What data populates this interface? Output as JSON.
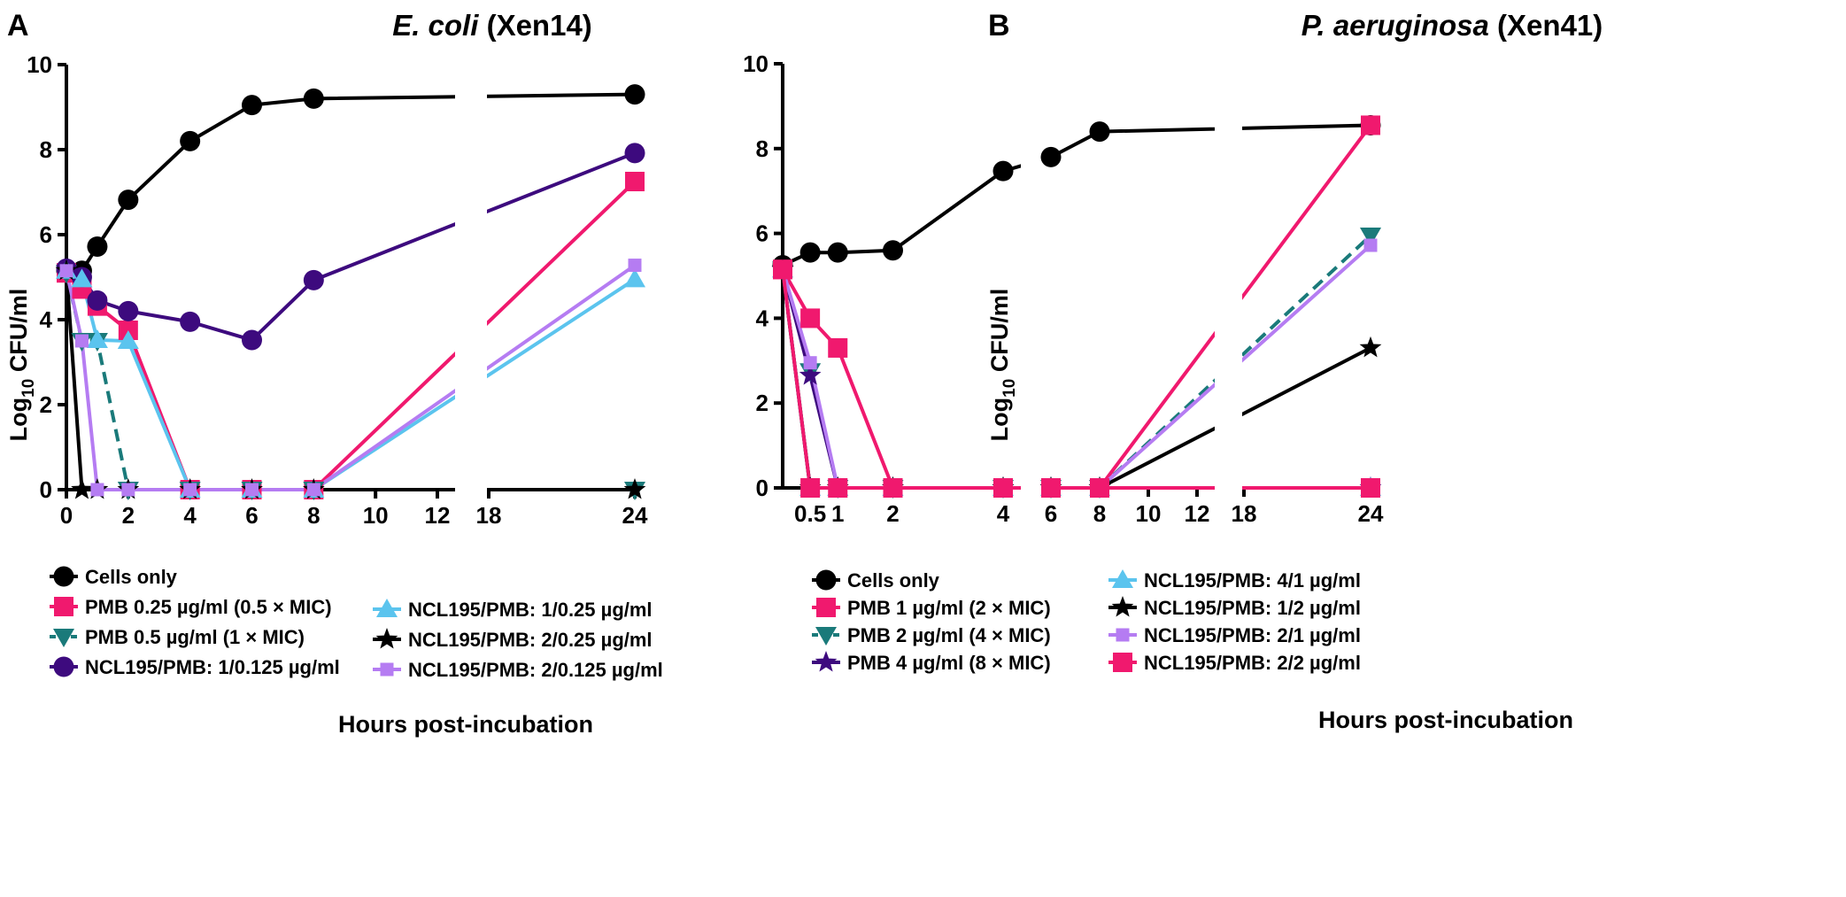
{
  "chart_data": [
    {
      "type": "line",
      "panel_label": "A",
      "title_italic": "E. coli",
      "title_rest": " (Xen14)",
      "xlabel": "Hours post-incubation",
      "ylabel_main": "Log",
      "ylabel_sub": "10",
      "ylabel_rest": " CFU/ml",
      "ylim": [
        0,
        10
      ],
      "yticks": [
        0,
        2,
        4,
        6,
        8,
        10
      ],
      "xticks": [
        0,
        2,
        4,
        6,
        8,
        10,
        12,
        18,
        24
      ],
      "xtick_labels": [
        "0",
        "2",
        "4",
        "6",
        "8",
        "10",
        "12",
        "18",
        "24"
      ],
      "axis_break": [
        12,
        18
      ],
      "series": [
        {
          "name": "Cells only",
          "color": "#000000",
          "marker": "circle",
          "dash": false,
          "x": [
            0,
            0.5,
            1,
            2,
            4,
            6,
            8,
            24
          ],
          "y": [
            5.15,
            5.15,
            5.72,
            6.82,
            8.2,
            9.05,
            9.2,
            9.3
          ]
        },
        {
          "name": "PMB 0.25 µg/ml (0.5 × MIC)",
          "color": "#f0196e",
          "marker": "square",
          "dash": false,
          "x": [
            0,
            0.5,
            1,
            2,
            4,
            6,
            8,
            24
          ],
          "y": [
            5.1,
            4.72,
            4.32,
            3.75,
            0,
            0,
            0,
            7.25
          ]
        },
        {
          "name": "PMB 0.5 µg/ml (1 × MIC)",
          "color": "#1a7a7a",
          "marker": "triangle-down",
          "dash": true,
          "x": [
            0,
            0.5,
            1,
            2,
            4,
            6,
            8,
            24
          ],
          "y": [
            5.1,
            3.5,
            3.5,
            0,
            0,
            0,
            0,
            0
          ]
        },
        {
          "name": "NCL195/PMB: 1/0.125 µg/ml",
          "color": "#3d0a7e",
          "marker": "circle",
          "dash": false,
          "x": [
            0,
            0.5,
            1,
            2,
            4,
            6,
            8,
            24
          ],
          "y": [
            5.2,
            5.0,
            4.45,
            4.2,
            3.95,
            3.52,
            4.93,
            7.92
          ]
        },
        {
          "name": "NCL195/PMB: 1/0.25 µg/ml",
          "color": "#5bc4ee",
          "marker": "triangle-up",
          "dash": false,
          "x": [
            0,
            0.5,
            1,
            2,
            4,
            6,
            8,
            24
          ],
          "y": [
            5.15,
            4.95,
            3.52,
            3.5,
            0,
            0,
            0,
            4.95
          ]
        },
        {
          "name": "NCL195/PMB: 2/0.25 µg/ml",
          "color": "#000000",
          "marker": "star",
          "dash": false,
          "x": [
            0,
            0.5,
            1,
            2,
            4,
            6,
            8,
            24
          ],
          "y": [
            5.15,
            0,
            0,
            0,
            0,
            0,
            0,
            0
          ]
        },
        {
          "name": "NCL195/PMB: 2/0.125 µg/ml",
          "color": "#b57cf2",
          "marker": "square-small",
          "dash": false,
          "x": [
            0,
            0.5,
            1,
            2,
            4,
            6,
            8,
            24
          ],
          "y": [
            5.15,
            3.5,
            0,
            0,
            0,
            0,
            0,
            5.28
          ]
        }
      ],
      "legend_col1": [
        "Cells only",
        "PMB 0.25 µg/ml (0.5 × MIC)",
        "PMB 0.5 µg/ml (1 × MIC)",
        "NCL195/PMB: 1/0.125 µg/ml"
      ],
      "legend_col2": [
        "NCL195/PMB: 1/0.25 µg/ml",
        "NCL195/PMB: 2/0.25 µg/ml",
        "NCL195/PMB: 2/0.125 µg/ml"
      ]
    },
    {
      "type": "line",
      "panel_label": "B",
      "title_italic": "P. aeruginosa",
      "title_rest": " (Xen41)",
      "xlabel": "Hours post-incubation",
      "ylabel_main": "Log",
      "ylabel_sub": "10",
      "ylabel_rest": " CFU/ml",
      "ylim": [
        0,
        10
      ],
      "yticks": [
        0,
        2,
        4,
        6,
        8,
        10
      ],
      "xticks": [
        0.5,
        1,
        2,
        4,
        6,
        8,
        10,
        12,
        18,
        24
      ],
      "xtick_labels": [
        "0.5",
        "1",
        "2",
        "4",
        "6",
        "8",
        "10",
        "12",
        "18",
        "24"
      ],
      "axis_breaks": [
        [
          4,
          6
        ],
        [
          12,
          18
        ]
      ],
      "series": [
        {
          "name": "Cells only",
          "color": "#000000",
          "marker": "circle",
          "dash": false,
          "x": [
            0,
            0.5,
            1,
            2,
            4,
            6,
            8,
            24
          ],
          "y": [
            5.25,
            5.55,
            5.55,
            5.6,
            7.47,
            7.8,
            8.4,
            8.55
          ]
        },
        {
          "name": "PMB 1 µg/ml (2 × MIC)",
          "color": "#f0196e",
          "marker": "square",
          "dash": false,
          "x": [
            0,
            0.5,
            1,
            2,
            4,
            6,
            8,
            24
          ],
          "y": [
            5.15,
            4.0,
            3.3,
            0,
            0,
            0,
            0,
            8.55
          ]
        },
        {
          "name": "PMB 2 µg/ml (4 × MIC)",
          "color": "#1a7a7a",
          "marker": "triangle-down",
          "dash": true,
          "x": [
            0,
            0.5,
            1,
            2,
            4,
            6,
            8,
            24
          ],
          "y": [
            5.15,
            2.75,
            0,
            0,
            0,
            0,
            0,
            5.95
          ]
        },
        {
          "name": "PMB 4 µg/ml (8 × MIC)",
          "color": "#3d0a7e",
          "marker": "star",
          "dash": false,
          "x": [
            0,
            0.5,
            1,
            2,
            4,
            6,
            8,
            24
          ],
          "y": [
            5.15,
            2.65,
            0,
            0,
            0,
            0,
            0,
            0
          ]
        },
        {
          "name": "NCL195/PMB: 4/1 µg/ml",
          "color": "#5bc4ee",
          "marker": "triangle-up",
          "dash": false,
          "x": [
            0,
            0.5,
            1,
            2,
            4,
            6,
            8,
            24
          ],
          "y": [
            5.15,
            0,
            0,
            0,
            0,
            0,
            0,
            0
          ]
        },
        {
          "name": "NCL195/PMB: 1/2 µg/ml",
          "color": "#000000",
          "marker": "star",
          "dash": false,
          "x": [
            0,
            0.5,
            1,
            2,
            4,
            6,
            8,
            24
          ],
          "y": [
            5.15,
            0,
            0,
            0,
            0,
            0,
            0,
            3.3
          ]
        },
        {
          "name": "NCL195/PMB: 2/1 µg/ml",
          "color": "#b57cf2",
          "marker": "square-small",
          "dash": false,
          "x": [
            0,
            0.5,
            1,
            2,
            4,
            6,
            8,
            24
          ],
          "y": [
            5.15,
            2.95,
            0,
            0,
            0,
            0,
            0,
            5.72
          ]
        },
        {
          "name": "NCL195/PMB: 2/2 µg/ml",
          "color": "#f0196e",
          "marker": "square",
          "dash": false,
          "x": [
            0,
            0.5,
            1,
            2,
            4,
            6,
            8,
            24
          ],
          "y": [
            5.15,
            0,
            0,
            0,
            0,
            0,
            0,
            0
          ]
        }
      ],
      "legend_col1": [
        "Cells only",
        "PMB 1 µg/ml (2 × MIC)",
        "PMB 2 µg/ml (4 × MIC)",
        "PMB 4 µg/ml (8 × MIC)"
      ],
      "legend_col2": [
        "NCL195/PMB: 4/1 µg/ml",
        "NCL195/PMB: 1/2 µg/ml",
        "NCL195/PMB: 2/1 µg/ml",
        "NCL195/PMB: 2/2 µg/ml"
      ]
    }
  ]
}
